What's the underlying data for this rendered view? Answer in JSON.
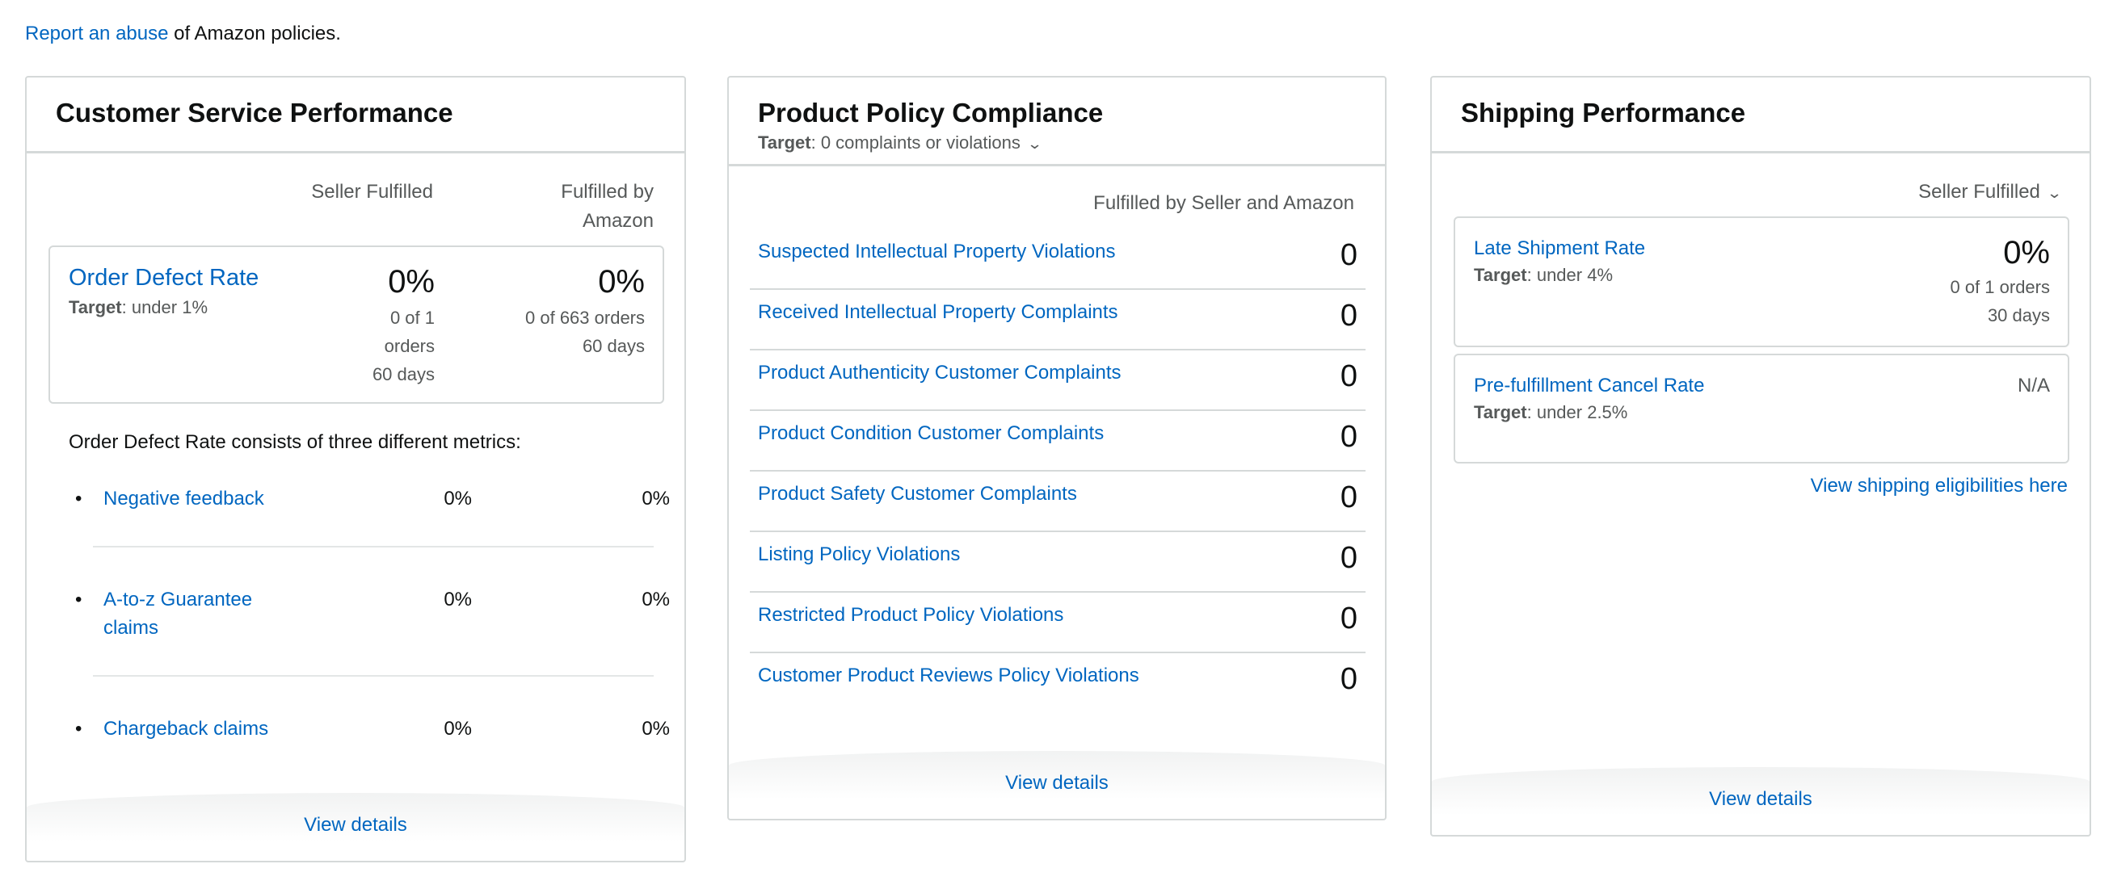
{
  "top": {
    "report_link": "Report an abuse",
    "report_suffix": " of Amazon policies."
  },
  "customer_service": {
    "title": "Customer Service Performance",
    "col_seller": "Seller Fulfilled",
    "col_amazon_line1": "Fulfilled by",
    "col_amazon_line2": "Amazon",
    "odr": {
      "title": "Order Defect Rate",
      "target_label": "Target",
      "target_value": ": under 1%",
      "seller_value": "0%",
      "seller_line1": "0 of 1",
      "seller_line2": "orders",
      "seller_line3": "60 days",
      "amazon_value": "0%",
      "amazon_line1": "0 of 663 orders",
      "amazon_line2": "60 days"
    },
    "consists_text": "Order Defect Rate consists of three different metrics:",
    "metrics": [
      {
        "name": "Negative feedback",
        "seller": "0%",
        "amazon": "0%"
      },
      {
        "name": "A-to-z Guarantee claims",
        "seller": "0%",
        "amazon": "0%"
      },
      {
        "name": "Chargeback claims",
        "seller": "0%",
        "amazon": "0%"
      }
    ],
    "view_details": "View details"
  },
  "product_policy": {
    "title": "Product Policy Compliance",
    "target_label": "Target",
    "target_value": ": 0 complaints or violations",
    "col_head": "Fulfilled by Seller and Amazon",
    "rows": [
      {
        "name": "Suspected Intellectual Property Violations",
        "count": "0"
      },
      {
        "name": "Received Intellectual Property Complaints",
        "count": "0"
      },
      {
        "name": "Product Authenticity Customer Complaints",
        "count": "0"
      },
      {
        "name": "Product Condition Customer Complaints",
        "count": "0"
      },
      {
        "name": "Product Safety Customer Complaints",
        "count": "0"
      },
      {
        "name": "Listing Policy Violations",
        "count": "0"
      },
      {
        "name": "Restricted Product Policy Violations",
        "count": "0"
      },
      {
        "name": "Customer Product Reviews Policy Violations",
        "count": "0"
      }
    ],
    "view_details": "View details"
  },
  "shipping": {
    "title": "Shipping Performance",
    "filter": "Seller Fulfilled",
    "late": {
      "name": "Late Shipment Rate",
      "target_label": "Target",
      "target_value": ": under 4%",
      "value": "0%",
      "line1": "0 of 1 orders",
      "line2": "30 days"
    },
    "cancel": {
      "name": "Pre-fulfillment Cancel Rate",
      "target_label": "Target",
      "target_value": ": under 2.5%",
      "value": "N/A"
    },
    "eligibilities_link": "View shipping eligibilities here",
    "view_details": "View details"
  }
}
